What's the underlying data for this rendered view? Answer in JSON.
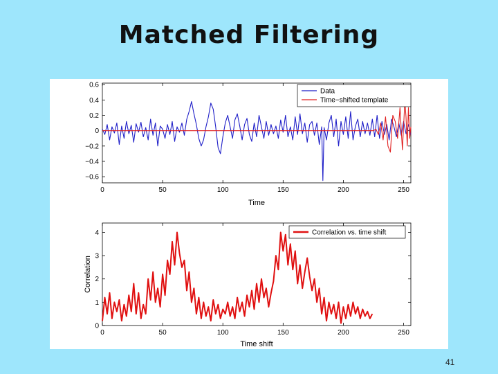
{
  "slide": {
    "title": "Matched Filtering",
    "page_number": "41"
  },
  "chart_data": [
    {
      "type": "line",
      "xlabel": "Time",
      "ylabel": "",
      "xlim": [
        0,
        256
      ],
      "ylim": [
        -0.68,
        0.62
      ],
      "xticks": [
        0,
        50,
        100,
        150,
        200,
        250
      ],
      "yticks": [
        -0.6,
        -0.4,
        -0.2,
        0,
        0.2,
        0.4,
        0.6
      ],
      "ytick_labels": [
        "−0.6",
        "−0.4",
        "−0.2",
        "0",
        "0.2",
        "0.4",
        "0.6"
      ],
      "legend_position": "top-right",
      "grid": false,
      "series": [
        {
          "name": "Data",
          "color": "#1f1fc8",
          "x": [
            0,
            2,
            4,
            6,
            8,
            10,
            12,
            14,
            16,
            18,
            20,
            22,
            24,
            26,
            28,
            30,
            32,
            34,
            36,
            38,
            40,
            42,
            44,
            46,
            48,
            50,
            52,
            54,
            56,
            58,
            60,
            62,
            64,
            66,
            68,
            70,
            72,
            74,
            76,
            78,
            80,
            82,
            84,
            86,
            88,
            90,
            92,
            94,
            96,
            98,
            100,
            102,
            104,
            106,
            108,
            110,
            112,
            114,
            116,
            118,
            120,
            122,
            124,
            126,
            128,
            130,
            132,
            134,
            136,
            138,
            140,
            142,
            144,
            146,
            148,
            150,
            152,
            154,
            156,
            158,
            160,
            162,
            164,
            166,
            168,
            170,
            172,
            174,
            176,
            178,
            180,
            182,
            183,
            184,
            186,
            188,
            190,
            192,
            194,
            196,
            198,
            200,
            202,
            204,
            206,
            208,
            210,
            212,
            214,
            216,
            218,
            220,
            222,
            224,
            226,
            228,
            230,
            232,
            234,
            236,
            238,
            240,
            242,
            244,
            246,
            248,
            250,
            252,
            254,
            256
          ],
          "y": [
            0.02,
            -0.05,
            0.08,
            -0.12,
            0.05,
            -0.03,
            0.1,
            -0.18,
            0.06,
            -0.1,
            0.12,
            -0.04,
            0.07,
            -0.15,
            0.09,
            -0.02,
            0.11,
            -0.08,
            0.04,
            -0.12,
            0.15,
            -0.06,
            0.1,
            -0.2,
            0.06,
            0.02,
            -0.1,
            0.08,
            -0.05,
            0.12,
            -0.14,
            0.05,
            -0.02,
            0.1,
            -0.06,
            0.15,
            0.25,
            0.38,
            0.22,
            0.08,
            -0.1,
            -0.2,
            -0.12,
            0.05,
            0.18,
            0.36,
            0.28,
            0.05,
            -0.22,
            -0.3,
            -0.08,
            0.1,
            0.2,
            0.05,
            -0.1,
            0.14,
            0.22,
            0.06,
            -0.12,
            0.08,
            0.16,
            -0.05,
            -0.14,
            0.1,
            -0.08,
            0.2,
            0.05,
            -0.1,
            0.12,
            -0.06,
            0.08,
            -0.04,
            0.06,
            -0.1,
            0.14,
            -0.02,
            0.2,
            -0.08,
            0.05,
            -0.12,
            0.18,
            -0.05,
            0.22,
            -0.04,
            0.1,
            -0.15,
            0.08,
            0.12,
            -0.06,
            0.1,
            -0.18,
            0.05,
            -0.65,
            0.04,
            -0.12,
            0.1,
            0.2,
            -0.08,
            0.15,
            -0.2,
            0.12,
            -0.05,
            0.18,
            -0.1,
            0.25,
            -0.12,
            0.06,
            0.15,
            -0.08,
            0.12,
            -0.04,
            0.1,
            -0.06,
            0.15,
            -0.08,
            0.2,
            -0.1,
            0.12,
            -0.05,
            0.08,
            -0.12,
            0.15,
            0.05,
            -0.08,
            0.1,
            -0.06,
            0.12,
            -0.04,
            0.08,
            -0.05
          ]
        },
        {
          "name": "Time−shifted template",
          "color": "#e02020",
          "x": [
            0,
            225,
            227,
            229,
            231,
            233,
            235,
            237,
            239,
            241,
            243,
            245,
            247,
            249,
            251,
            252,
            253,
            254,
            255,
            256
          ],
          "y": [
            0,
            0,
            0.02,
            -0.05,
            0.1,
            -0.12,
            0.18,
            -0.2,
            -0.28,
            0.2,
            0.12,
            -0.1,
            0.3,
            -0.25,
            0.38,
            0.18,
            -0.2,
            0.3,
            -0.1,
            0.05
          ]
        }
      ]
    },
    {
      "type": "line",
      "xlabel": "Time shift",
      "ylabel": "Correlation",
      "xlim": [
        0,
        256
      ],
      "ylim": [
        0,
        4.4
      ],
      "xticks": [
        0,
        50,
        100,
        150,
        200,
        250
      ],
      "yticks": [
        0,
        1,
        2,
        3,
        4
      ],
      "legend_position": "top-right",
      "grid": false,
      "series": [
        {
          "name": "Correlation vs. time shift",
          "color": "#e01010",
          "x": [
            0,
            2,
            4,
            6,
            8,
            10,
            12,
            14,
            16,
            18,
            20,
            22,
            24,
            26,
            28,
            30,
            32,
            34,
            36,
            38,
            40,
            42,
            44,
            46,
            48,
            50,
            52,
            54,
            56,
            58,
            60,
            62,
            64,
            66,
            68,
            70,
            72,
            74,
            76,
            78,
            80,
            82,
            84,
            86,
            88,
            90,
            92,
            94,
            96,
            98,
            100,
            102,
            104,
            106,
            108,
            110,
            112,
            114,
            116,
            118,
            120,
            122,
            124,
            126,
            128,
            130,
            132,
            134,
            136,
            138,
            140,
            142,
            144,
            146,
            148,
            150,
            152,
            154,
            156,
            158,
            160,
            162,
            164,
            166,
            168,
            170,
            172,
            174,
            176,
            178,
            180,
            182,
            184,
            186,
            188,
            190,
            192,
            194,
            196,
            198,
            200,
            202,
            204,
            206,
            208,
            210,
            212,
            214,
            216,
            218,
            220,
            222,
            224
          ],
          "y": [
            0.2,
            1.2,
            0.5,
            1.4,
            0.3,
            1.0,
            0.6,
            1.1,
            0.2,
            0.9,
            0.4,
            1.3,
            0.6,
            1.8,
            0.5,
            1.4,
            0.3,
            0.9,
            0.5,
            2.0,
            1.1,
            2.3,
            1.0,
            1.6,
            0.8,
            2.2,
            1.3,
            2.8,
            2.2,
            3.6,
            2.6,
            4.0,
            3.1,
            2.5,
            2.8,
            1.5,
            2.3,
            1.0,
            1.6,
            0.5,
            1.2,
            0.3,
            1.0,
            0.4,
            0.8,
            0.2,
            1.1,
            0.5,
            0.9,
            0.3,
            0.7,
            0.5,
            1.0,
            0.4,
            0.8,
            0.3,
            1.2,
            0.6,
            1.0,
            0.4,
            1.3,
            0.8,
            1.5,
            0.7,
            1.8,
            1.0,
            2.0,
            1.2,
            1.6,
            0.8,
            1.4,
            1.9,
            3.0,
            2.4,
            4.0,
            3.2,
            3.9,
            2.6,
            3.5,
            2.4,
            3.2,
            1.8,
            2.6,
            1.6,
            2.3,
            2.9,
            2.1,
            1.5,
            2.0,
            1.0,
            1.6,
            0.5,
            1.2,
            0.2,
            1.0,
            0.5,
            0.9,
            0.3,
            1.0,
            0.1,
            0.8,
            0.3,
            0.9,
            0.4,
            1.0,
            0.5,
            0.8,
            0.3,
            0.7,
            0.4,
            0.6,
            0.3,
            0.5
          ]
        }
      ]
    }
  ]
}
